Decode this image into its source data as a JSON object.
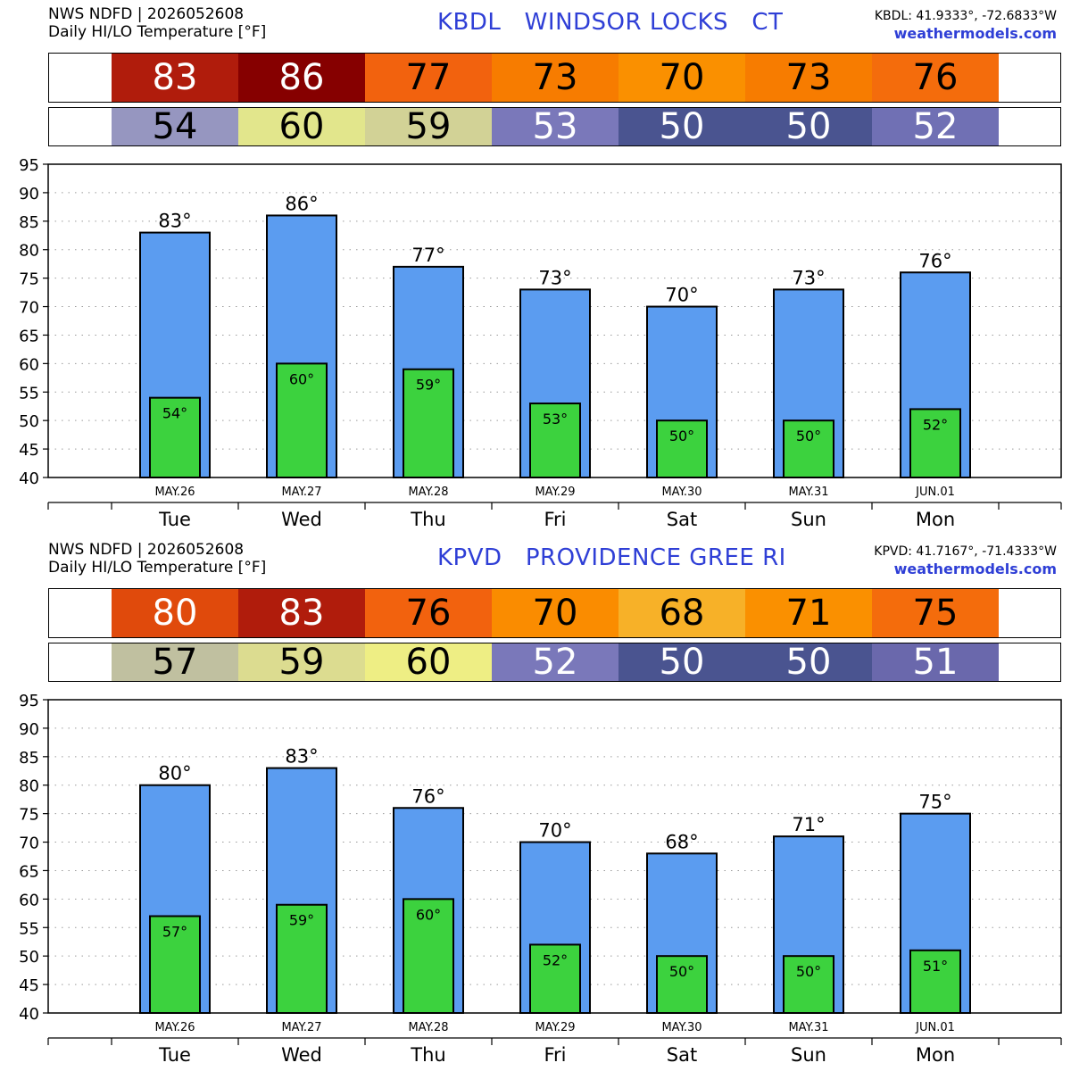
{
  "colors": {
    "hi_bar": "#5b9cf0",
    "lo_bar": "#3cd23e",
    "title_blue": "#2f3fd6"
  },
  "chart_data": [
    {
      "type": "bar",
      "header": {
        "source": "NWS NDFD | 2026052608",
        "subtitle": "Daily HI/LO Temperature [°F]",
        "title": "KBDL   WINDSOR LOCKS   CT",
        "coords": "KBDL: 41.9333°, -72.6833°W",
        "site": "weathermodels.com"
      },
      "dates": [
        "MAY.26",
        "MAY.27",
        "MAY.28",
        "MAY.29",
        "MAY.30",
        "MAY.31",
        "JUN.01"
      ],
      "categories": [
        "Tue",
        "Wed",
        "Thu",
        "Fri",
        "Sat",
        "Sun",
        "Mon"
      ],
      "hi_colors": [
        "#b01c0c",
        "#860000",
        "#f2620e",
        "#f77c00",
        "#fa9000",
        "#f77c00",
        "#f46c0c"
      ],
      "hi_text_colors": [
        "#ffffff",
        "#ffffff",
        "#000000",
        "#000000",
        "#000000",
        "#000000",
        "#000000"
      ],
      "lo_colors": [
        "#9696c0",
        "#e2e68c",
        "#d2d296",
        "#7a78ba",
        "#4a5490",
        "#4a5490",
        "#7070b4"
      ],
      "lo_text_colors": [
        "#000000",
        "#000000",
        "#000000",
        "#ffffff",
        "#ffffff",
        "#ffffff",
        "#ffffff"
      ],
      "series": [
        {
          "values": [
            83,
            86,
            77,
            73,
            70,
            73,
            76
          ]
        },
        {
          "values": [
            54,
            60,
            59,
            53,
            50,
            50,
            52
          ]
        }
      ],
      "hi_labels": [
        "83°",
        "86°",
        "77°",
        "73°",
        "70°",
        "73°",
        "76°"
      ],
      "lo_labels": [
        "54°",
        "60°",
        "59°",
        "53°",
        "50°",
        "50°",
        "52°"
      ],
      "ylim": [
        40,
        95
      ],
      "yticks": [
        "40",
        "45",
        "50",
        "55",
        "60",
        "65",
        "70",
        "75",
        "80",
        "85",
        "90",
        "95"
      ],
      "grid": true
    },
    {
      "type": "bar",
      "header": {
        "source": "NWS NDFD | 2026052608",
        "subtitle": "Daily HI/LO Temperature [°F]",
        "title": "KPVD   PROVIDENCE GREE RI",
        "coords": "KPVD: 41.7167°, -71.4333°W",
        "site": "weathermodels.com"
      },
      "dates": [
        "MAY.26",
        "MAY.27",
        "MAY.28",
        "MAY.29",
        "MAY.30",
        "MAY.31",
        "JUN.01"
      ],
      "categories": [
        "Tue",
        "Wed",
        "Thu",
        "Fri",
        "Sat",
        "Sun",
        "Mon"
      ],
      "hi_colors": [
        "#e04a0c",
        "#b01c0c",
        "#f2620e",
        "#fa8c00",
        "#f7b128",
        "#fa9000",
        "#f46c0c"
      ],
      "hi_text_colors": [
        "#ffffff",
        "#ffffff",
        "#000000",
        "#000000",
        "#000000",
        "#000000",
        "#000000"
      ],
      "lo_colors": [
        "#c0c0a0",
        "#dcdc90",
        "#eeee84",
        "#7a78ba",
        "#4a5490",
        "#4a5490",
        "#6a68ac"
      ],
      "lo_text_colors": [
        "#000000",
        "#000000",
        "#000000",
        "#ffffff",
        "#ffffff",
        "#ffffff",
        "#ffffff"
      ],
      "series": [
        {
          "values": [
            80,
            83,
            76,
            70,
            68,
            71,
            75
          ]
        },
        {
          "values": [
            57,
            59,
            60,
            52,
            50,
            50,
            51
          ]
        }
      ],
      "hi_labels": [
        "80°",
        "83°",
        "76°",
        "70°",
        "68°",
        "71°",
        "75°"
      ],
      "lo_labels": [
        "57°",
        "59°",
        "60°",
        "52°",
        "50°",
        "50°",
        "51°"
      ],
      "ylim": [
        40,
        95
      ],
      "yticks": [
        "40",
        "45",
        "50",
        "55",
        "60",
        "65",
        "70",
        "75",
        "80",
        "85",
        "90",
        "95"
      ],
      "grid": true
    }
  ]
}
